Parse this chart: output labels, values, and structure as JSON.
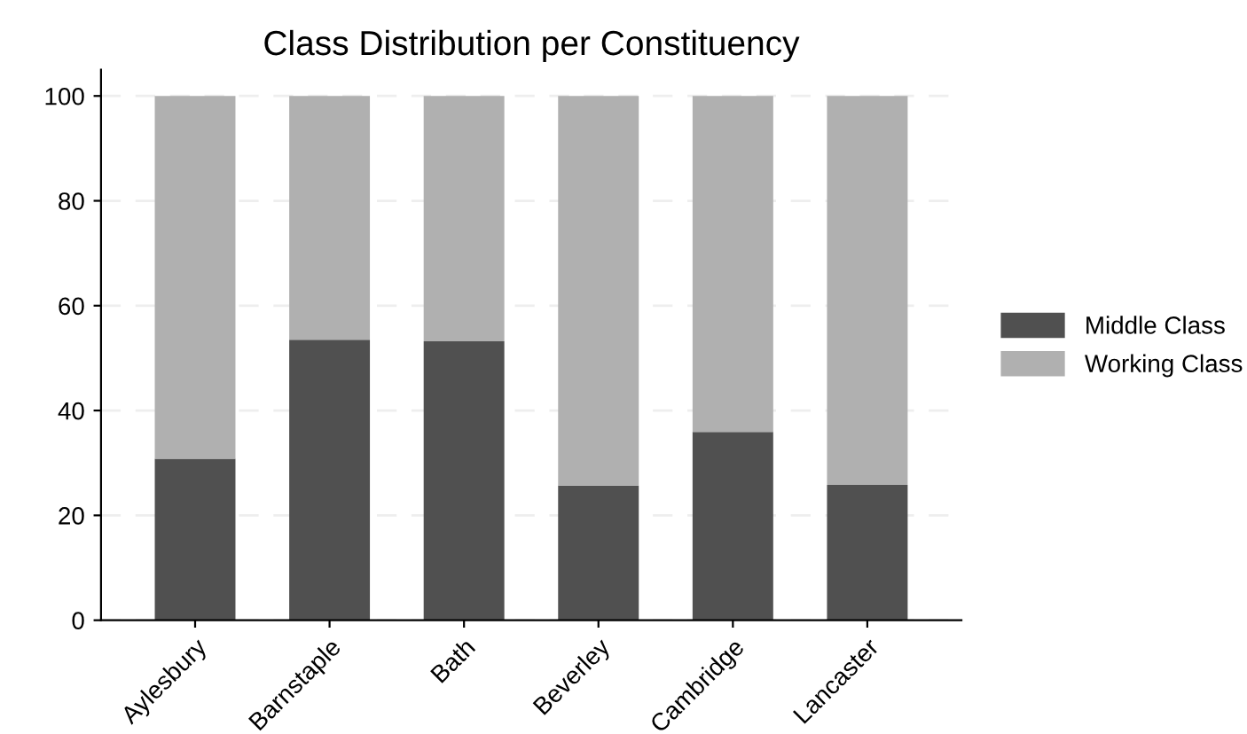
{
  "chart_data": {
    "type": "bar",
    "title": "Class Distribution per Constituency",
    "stacked": true,
    "categories": [
      "Aylesbury",
      "Barnstaple",
      "Bath",
      "Beverley",
      "Cambridge",
      "Lancaster"
    ],
    "series": [
      {
        "name": "Middle Class",
        "color": "#505050",
        "values": [
          30.8,
          53.5,
          53.2,
          25.7,
          35.9,
          25.8
        ]
      },
      {
        "name": "Working Class",
        "color": "#b0b0b0",
        "values": [
          69.2,
          46.5,
          46.8,
          74.3,
          64.1,
          74.2
        ]
      }
    ],
    "ylim": [
      0,
      105
    ],
    "yticks": [
      0,
      20,
      40,
      60,
      80,
      100
    ],
    "grid": "y",
    "legend": "right"
  }
}
